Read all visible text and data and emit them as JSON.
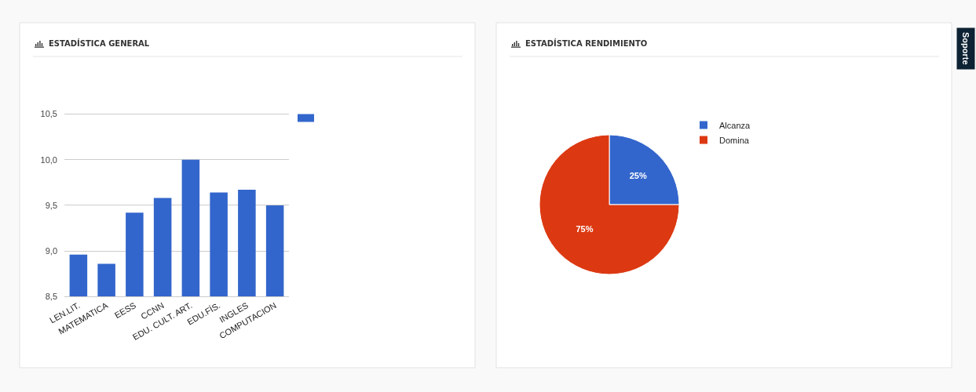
{
  "chart_data": [
    {
      "type": "bar",
      "title": "ESTADÍSTICA GENERAL",
      "categories": [
        "LEN.LIT.",
        "MATEMATICA",
        "EESS",
        "CCNN",
        "EDU. CULT. ART.",
        "EDU.FÍS.",
        "INGLES",
        "COMPUTACION"
      ],
      "values": [
        8.96,
        8.86,
        9.42,
        9.58,
        10.0,
        9.64,
        9.67,
        9.5
      ],
      "color": "#3366cc",
      "ylim": [
        8.5,
        10.5
      ],
      "yticks": [
        {
          "value": 8.5,
          "label": "8,5"
        },
        {
          "value": 9.0,
          "label": "9,0"
        },
        {
          "value": 9.5,
          "label": "9,5"
        },
        {
          "value": 10.0,
          "label": "10,0"
        },
        {
          "value": 10.5,
          "label": "10,5"
        }
      ],
      "grid": "y"
    },
    {
      "type": "pie",
      "title": "ESTADÍSTICA RENDIMIENTO",
      "categories": [
        "Alcanza",
        "Domina"
      ],
      "values": [
        25,
        75
      ],
      "colors": [
        "#3366cc",
        "#dc3912"
      ],
      "value_labels": [
        "25%",
        "75%"
      ],
      "legend": "top right",
      "annotations": [
        "Soporte"
      ]
    }
  ]
}
